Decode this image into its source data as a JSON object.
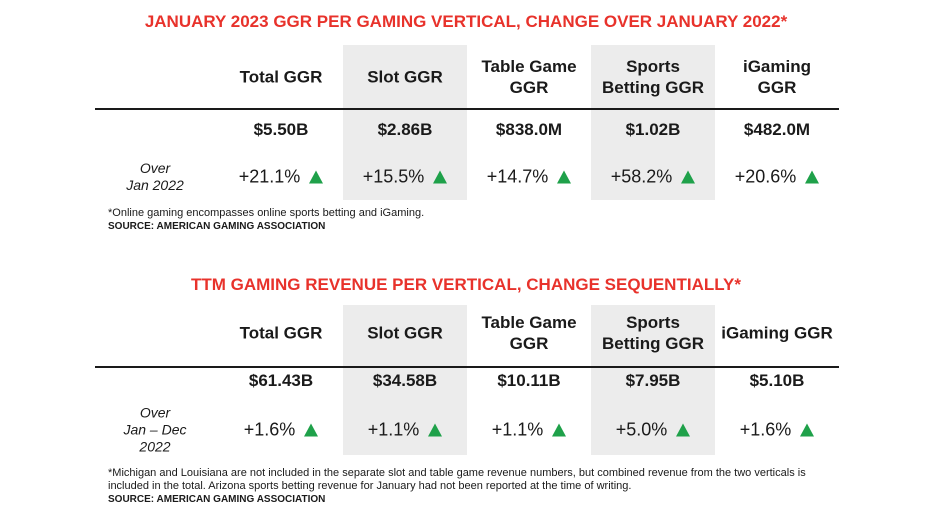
{
  "tables": [
    {
      "title": "JANUARY 2023 GGR PER GAMING VERTICAL, CHANGE OVER JANUARY 2022*",
      "headers": [
        "Total GGR",
        "Slot GGR",
        [
          "Table Game",
          "GGR"
        ],
        [
          "Sports",
          "Betting GGR"
        ],
        [
          "iGaming",
          "GGR"
        ]
      ],
      "values_row": [
        "$5.50B",
        "$2.86B",
        "$838.0M",
        "$1.02B",
        "$482.0M"
      ],
      "change_label": [
        "Over",
        "Jan 2022"
      ],
      "changes": [
        "+21.1%",
        "+15.5%",
        "+14.7%",
        "+58.2%",
        "+20.6%"
      ],
      "footnote": "*Online gaming encompasses online sports betting and iGaming.",
      "source": "SOURCE: AMERICAN GAMING ASSOCIATION"
    },
    {
      "title": "TTM GAMING REVENUE PER VERTICAL, CHANGE SEQUENTIALLY*",
      "headers": [
        "Total GGR",
        "Slot GGR",
        [
          "Table Game",
          "GGR"
        ],
        [
          "Sports",
          "Betting GGR"
        ],
        "iGaming GGR"
      ],
      "values_row": [
        "$61.43B",
        "$34.58B",
        "$10.11B",
        "$7.95B",
        "$5.10B"
      ],
      "change_label": [
        "Over",
        "Jan – Dec",
        "2022"
      ],
      "changes": [
        "+1.6%",
        "+1.1%",
        "+1.1%",
        "+5.0%",
        "+1.6%"
      ],
      "footnote": "*Michigan and Louisiana are not included in the separate slot and table game revenue numbers, but combined revenue from the two verticals is included in the total. Arizona sports betting revenue for January had not been reported at the time of writing.",
      "source": "SOURCE: AMERICAN GAMING ASSOCIATION"
    }
  ]
}
